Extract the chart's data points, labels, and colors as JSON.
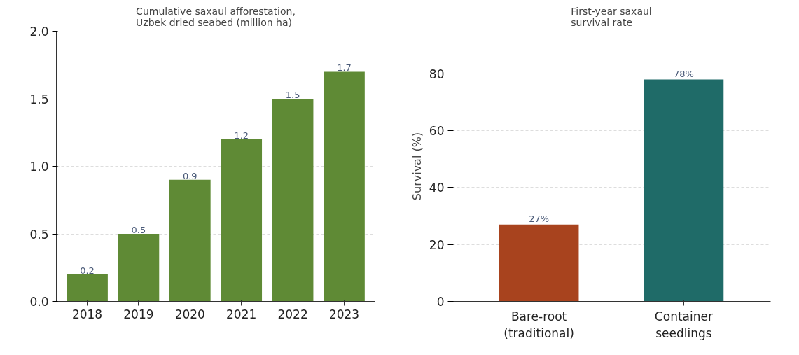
{
  "chart_data": [
    {
      "type": "bar",
      "title": "Cumulative saxaul afforestation,\nUzbek dried seabed (million ha)",
      "categories": [
        "2018",
        "2019",
        "2020",
        "2021",
        "2022",
        "2023"
      ],
      "values": [
        0.2,
        0.5,
        0.9,
        1.2,
        1.5,
        1.7
      ],
      "color": "#5f8a35",
      "ylim": [
        0,
        2.0
      ],
      "yticks": [
        {
          "value": 0,
          "label": "0.0"
        },
        {
          "value": 0.5,
          "label": "0.5"
        },
        {
          "value": 1.0,
          "label": "1.0"
        },
        {
          "value": 1.5,
          "label": "1.5"
        },
        {
          "value": 2.0,
          "label": "2.0"
        }
      ],
      "grid": "y",
      "data_labels": true
    },
    {
      "type": "bar",
      "title": "First-year saxaul\nsurvival rate",
      "ylabel": "Survival (%)",
      "categories": [
        "Bare-root\n(traditional)",
        "Container\nseedlings"
      ],
      "values": [
        27,
        78
      ],
      "colors": [
        "#a8431e",
        "#1f6b68"
      ],
      "value_labels": [
        "27%",
        "78%"
      ],
      "ylim": [
        0,
        95
      ],
      "yticks": [
        0,
        20,
        40,
        60,
        80
      ],
      "grid": "y"
    }
  ]
}
